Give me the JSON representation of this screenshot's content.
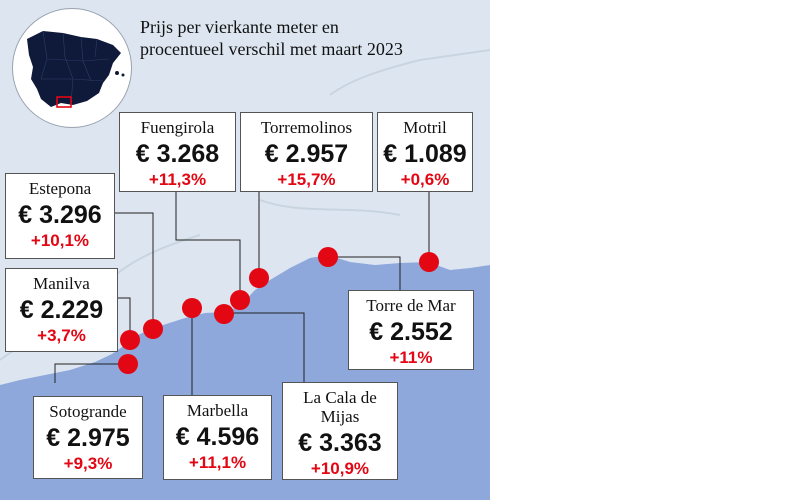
{
  "title": {
    "line1": "Prijs per vierkante meter en",
    "line2": "procentueel verschil met maart 2023"
  },
  "colors": {
    "sea": "#8fa8dc",
    "land": "#dde6f0",
    "marker": "#e30613",
    "change_text": "#e30613",
    "spain_fill": "#0f1a3a"
  },
  "inset": {
    "icon": "spain-map-icon",
    "highlight": "red-rectangle-highlight"
  },
  "places": [
    {
      "id": "fuengirola",
      "name": "Fuengirola",
      "price": "€ 3.268",
      "change": "+11,3%"
    },
    {
      "id": "torremolinos",
      "name": "Torremolinos",
      "price": "€ 2.957",
      "change": "+15,7%"
    },
    {
      "id": "motril",
      "name": "Motril",
      "price": "€ 1.089",
      "change": "+0,6%"
    },
    {
      "id": "estepona",
      "name": "Estepona",
      "price": "€ 3.296",
      "change": "+10,1%"
    },
    {
      "id": "manilva",
      "name": "Manilva",
      "price": "€ 2.229",
      "change": "+3,7%"
    },
    {
      "id": "torre-de-mar",
      "name": "Torre de Mar",
      "price": "€ 2.552",
      "change": "+11%"
    },
    {
      "id": "sotogrande",
      "name": "Sotogrande",
      "price": "€ 2.975",
      "change": "+9,3%"
    },
    {
      "id": "marbella",
      "name": "Marbella",
      "price": "€ 4.596",
      "change": "+11,1%"
    },
    {
      "id": "la-cala",
      "name": "La Cala de\nMijas",
      "price": "€ 3.363",
      "change": "+10,9%"
    }
  ]
}
